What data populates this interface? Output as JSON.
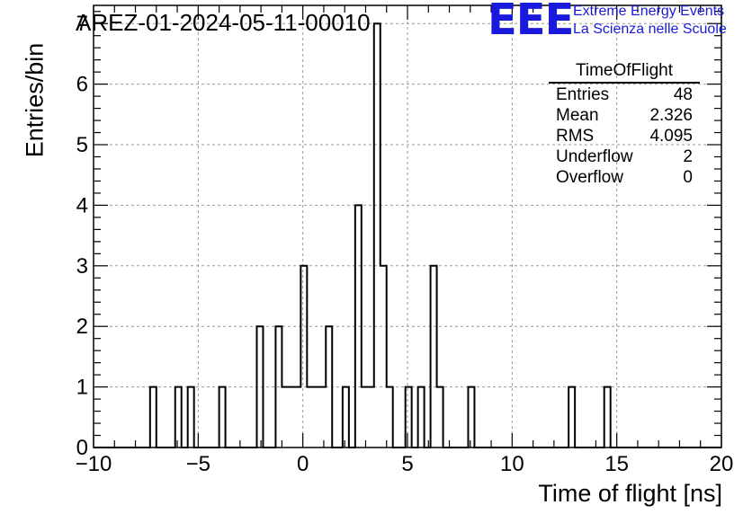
{
  "chart_data": {
    "type": "histogram",
    "title": "AREZ-01-2024-05-11-00010",
    "xlabel": "Time of flight [ns]",
    "ylabel": "Entries/bin",
    "xlim": [
      -10,
      20
    ],
    "ylim": [
      0,
      7.3
    ],
    "xticks": [
      -10,
      -5,
      0,
      5,
      10,
      15,
      20
    ],
    "xtick_labels": [
      "−10",
      "−5",
      "0",
      "5",
      "10",
      "15",
      "20"
    ],
    "yticks": [
      0,
      1,
      2,
      3,
      4,
      5,
      6,
      7
    ],
    "grid": true,
    "bin_width": 0.3,
    "bins": [
      {
        "x0": -7.3,
        "count": 1
      },
      {
        "x0": -6.1,
        "count": 1
      },
      {
        "x0": -5.5,
        "count": 1
      },
      {
        "x0": -4.0,
        "count": 1
      },
      {
        "x0": -2.2,
        "count": 2
      },
      {
        "x0": -1.3,
        "count": 2
      },
      {
        "x0": -1.0,
        "count": 1
      },
      {
        "x0": -0.7,
        "count": 1
      },
      {
        "x0": -0.4,
        "count": 1
      },
      {
        "x0": -0.1,
        "count": 3
      },
      {
        "x0": 0.2,
        "count": 1
      },
      {
        "x0": 0.5,
        "count": 1
      },
      {
        "x0": 0.8,
        "count": 1
      },
      {
        "x0": 1.1,
        "count": 2
      },
      {
        "x0": 1.9,
        "count": 1
      },
      {
        "x0": 2.5,
        "count": 4
      },
      {
        "x0": 2.8,
        "count": 1
      },
      {
        "x0": 3.1,
        "count": 1
      },
      {
        "x0": 3.4,
        "count": 7
      },
      {
        "x0": 3.7,
        "count": 3
      },
      {
        "x0": 4.0,
        "count": 1
      },
      {
        "x0": 4.9,
        "count": 1
      },
      {
        "x0": 5.5,
        "count": 1
      },
      {
        "x0": 6.1,
        "count": 3
      },
      {
        "x0": 6.4,
        "count": 1
      },
      {
        "x0": 7.9,
        "count": 1
      },
      {
        "x0": 12.7,
        "count": 1
      },
      {
        "x0": 14.4,
        "count": 1
      }
    ],
    "stats_box": {
      "title": "TimeOfFlight",
      "rows": [
        {
          "label": "Entries",
          "value": "48"
        },
        {
          "label": "Mean",
          "value": "2.326"
        },
        {
          "label": "RMS",
          "value": "4.095"
        },
        {
          "label": "Underflow",
          "value": "2"
        },
        {
          "label": "Overflow",
          "value": "0"
        }
      ]
    }
  },
  "logo": {
    "mark": "EEE",
    "line1": "Extreme Energy Events",
    "line2": "La Scienza nelle Scuole",
    "color": "#1a1adc"
  }
}
